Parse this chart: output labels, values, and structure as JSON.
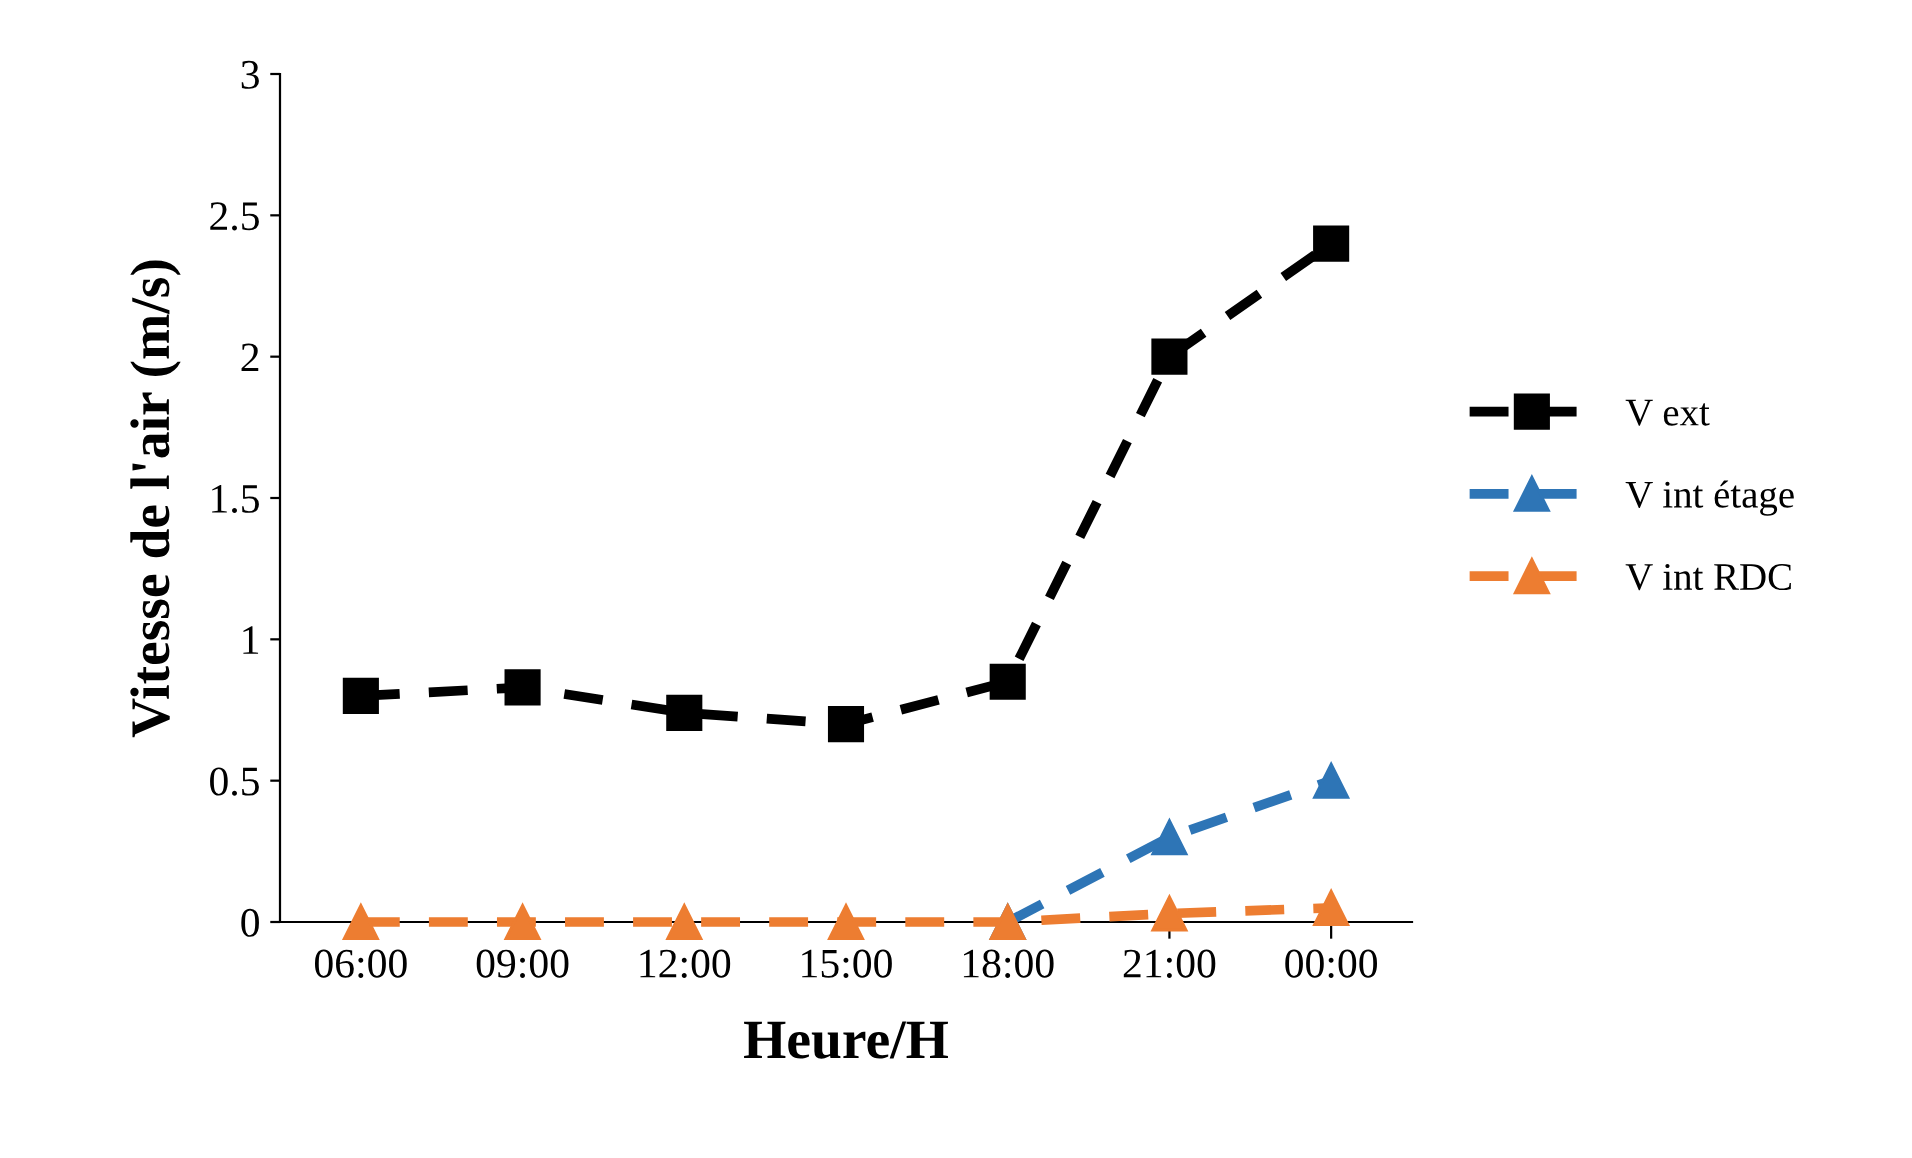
{
  "chart_data": {
    "type": "line",
    "xlabel": "Heure/H",
    "ylabel": "Vitesse de l'air (m/s)",
    "categories": [
      "06:00",
      "09:00",
      "12:00",
      "15:00",
      "18:00",
      "21:00",
      "00:00"
    ],
    "series": [
      {
        "name": "V ext",
        "color": "#000000",
        "marker": "square",
        "values": [
          0.8,
          0.83,
          0.74,
          0.7,
          0.85,
          2.0,
          2.4
        ]
      },
      {
        "name": "V int étage",
        "color": "#2e75b6",
        "marker": "triangle",
        "values": [
          null,
          null,
          null,
          null,
          0,
          0.3,
          0.5
        ]
      },
      {
        "name": "V int RDC",
        "color": "#ed7d31",
        "marker": "triangle",
        "values": [
          0,
          0,
          0,
          0,
          0,
          0.03,
          0.05
        ]
      }
    ],
    "ylim": [
      0,
      3
    ],
    "yticks": [
      0,
      0.5,
      1,
      1.5,
      2,
      2.5,
      3
    ],
    "grid": false,
    "legend": "right",
    "line_style": "dashed"
  }
}
